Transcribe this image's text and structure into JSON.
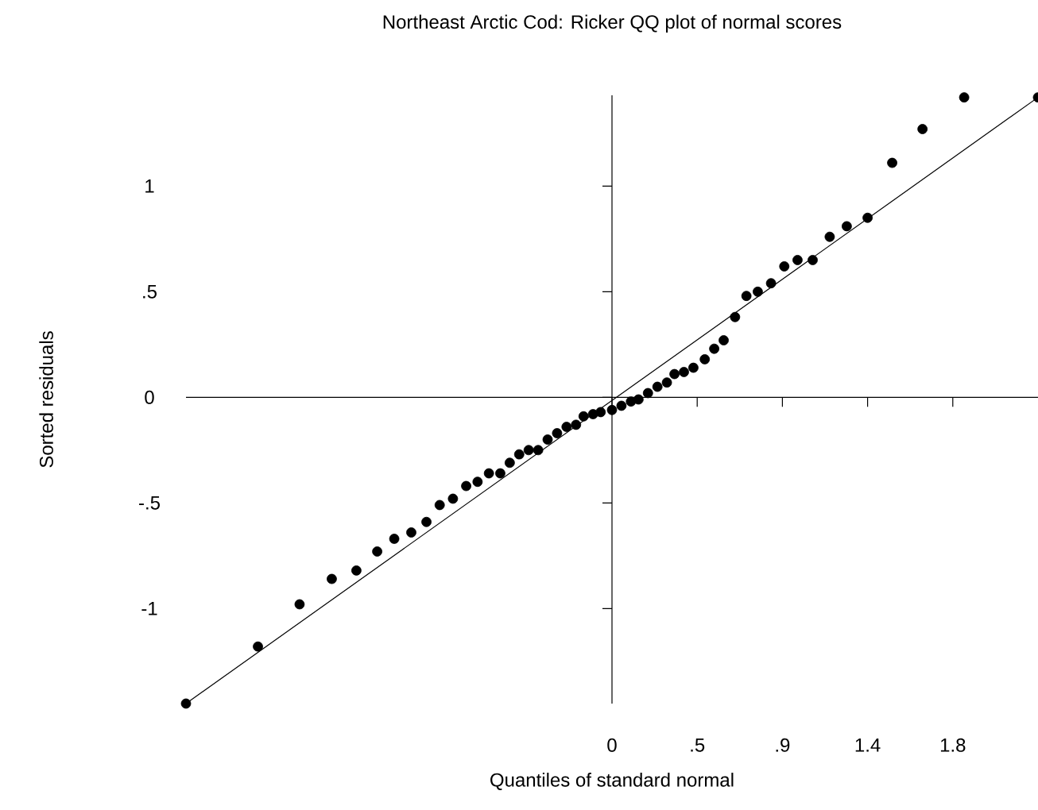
{
  "chart_data": {
    "type": "scatter",
    "title": "Northeast Arctic Cod: Ricker QQ plot of normal scores",
    "xlabel": "Quantiles of standard normal",
    "ylabel": "Sorted residuals",
    "xlim": [
      -2.25,
      2.25
    ],
    "ylim": [
      -1.45,
      1.43
    ],
    "xticks": [
      0,
      {
        "value": 0.45,
        "label": ".5"
      },
      {
        "value": 0.9,
        "label": ".9"
      },
      {
        "value": 1.35,
        "label": "1.4"
      },
      1.8
    ],
    "yticks": [
      -1,
      {
        "value": -0.5,
        "label": "-.5"
      },
      0,
      {
        "value": 0.5,
        "label": ".5"
      },
      1
    ],
    "series": [
      {
        "type": "scatter",
        "color": "#000000",
        "marker": "circle",
        "x": [
          -2.25,
          -1.87,
          -1.65,
          -1.48,
          -1.35,
          -1.24,
          -1.15,
          -1.06,
          -0.98,
          -0.91,
          -0.84,
          -0.77,
          -0.71,
          -0.65,
          -0.59,
          -0.54,
          -0.49,
          -0.44,
          -0.39,
          -0.34,
          -0.29,
          -0.24,
          -0.19,
          -0.15,
          -0.1,
          -0.06,
          0,
          0.05,
          0.1,
          0.14,
          0.19,
          0.24,
          0.29,
          0.33,
          0.38,
          0.43,
          0.49,
          0.54,
          0.59,
          0.65,
          0.71,
          0.77,
          0.84,
          0.91,
          0.98,
          1.06,
          1.15,
          1.24,
          1.35,
          1.48,
          1.64,
          1.86,
          2.25
        ],
        "values": [
          -1.45,
          -1.18,
          -0.98,
          -0.86,
          -0.82,
          -0.73,
          -0.67,
          -0.64,
          -0.59,
          -0.51,
          -0.48,
          -0.42,
          -0.4,
          -0.36,
          -0.36,
          -0.31,
          -0.27,
          -0.25,
          -0.25,
          -0.2,
          -0.17,
          -0.14,
          -0.13,
          -0.09,
          -0.08,
          -0.07,
          -0.06,
          -0.04,
          -0.02,
          -0.01,
          0.02,
          0.05,
          0.07,
          0.11,
          0.12,
          0.14,
          0.18,
          0.23,
          0.27,
          0.38,
          0.48,
          0.5,
          0.54,
          0.62,
          0.65,
          0.65,
          0.76,
          0.81,
          0.85,
          1.11,
          1.27,
          1.42,
          1.42
        ]
      },
      {
        "type": "line",
        "color": "#000000",
        "x": [
          -2.25,
          2.25
        ],
        "values": [
          -1.45,
          1.42
        ]
      }
    ]
  }
}
